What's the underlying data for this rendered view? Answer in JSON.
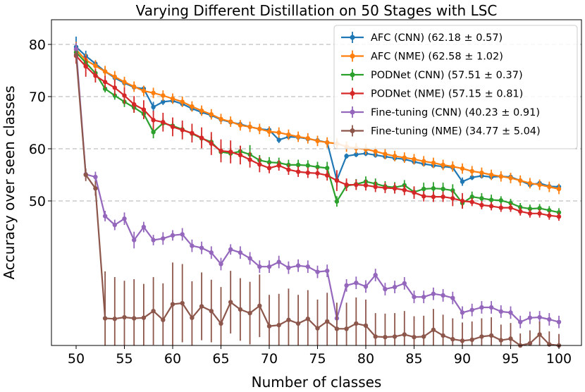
{
  "chart_data": {
    "type": "line",
    "title": "Varying Different Distillation on 50 Stages with LSC",
    "xlabel": "Number of classes",
    "ylabel": "Accuracy over seen classes",
    "xlim": [
      50,
      100
    ],
    "ylim": [
      27,
      83
    ],
    "xticks": [
      "50",
      "55",
      "60",
      "65",
      "70",
      "75",
      "80",
      "85",
      "90",
      "95",
      "100"
    ],
    "yticks": [
      "50",
      "60",
      "70",
      "80"
    ],
    "grid": "horizontal dashed at y ticks",
    "legend_position": "top-right",
    "x": [
      50,
      51,
      52,
      53,
      54,
      55,
      56,
      57,
      58,
      59,
      60,
      61,
      62,
      63,
      64,
      65,
      66,
      67,
      68,
      69,
      70,
      71,
      72,
      73,
      74,
      75,
      76,
      77,
      78,
      79,
      80,
      81,
      82,
      83,
      84,
      85,
      86,
      87,
      88,
      89,
      90,
      91,
      92,
      93,
      94,
      95,
      96,
      97,
      98,
      99,
      100
    ],
    "series": [
      {
        "name": "AFC (CNN) (62.18 ± 0.57)",
        "color": "#1f77b4",
        "values": [
          79.5,
          77.8,
          76.3,
          74.8,
          73.6,
          72.6,
          71.8,
          71.5,
          68.0,
          69.0,
          69.2,
          68.6,
          67.7,
          67.0,
          66.4,
          65.6,
          65.1,
          64.7,
          64.2,
          63.8,
          63.6,
          61.7,
          62.3,
          62.2,
          61.9,
          61.6,
          61.2,
          54.0,
          58.6,
          58.9,
          59.1,
          58.8,
          58.5,
          58.2,
          58.0,
          57.5,
          57.1,
          56.8,
          56.6,
          56.4,
          53.7,
          54.5,
          54.8,
          54.6,
          54.7,
          54.6,
          53.9,
          53.1,
          53.4,
          52.8,
          52.7
        ],
        "errors": [
          2.0,
          1.0,
          0.6,
          0.6,
          0.6,
          0.6,
          0.5,
          0.5,
          1.0,
          0.6,
          0.5,
          0.5,
          0.5,
          0.5,
          0.5,
          0.5,
          0.5,
          0.5,
          0.5,
          0.5,
          0.5,
          0.6,
          0.5,
          0.5,
          0.5,
          0.5,
          0.5,
          1.2,
          0.5,
          0.5,
          0.5,
          0.5,
          0.5,
          0.5,
          0.5,
          0.5,
          0.5,
          0.5,
          0.5,
          0.5,
          0.8,
          0.5,
          0.5,
          0.5,
          0.5,
          0.5,
          0.5,
          0.5,
          0.5,
          0.5,
          0.5
        ]
      },
      {
        "name": "AFC (NME) (62.58 ± 1.02)",
        "color": "#ff7f0e",
        "values": [
          79.0,
          77.0,
          75.9,
          74.8,
          73.8,
          72.8,
          71.9,
          71.1,
          70.7,
          70.2,
          69.6,
          69.0,
          68.1,
          67.3,
          66.6,
          65.7,
          65.2,
          64.5,
          64.2,
          63.8,
          63.3,
          63.1,
          62.7,
          62.3,
          62.0,
          61.5,
          61.2,
          61.0,
          60.4,
          60.1,
          59.9,
          59.5,
          59.0,
          58.6,
          58.3,
          58.0,
          57.6,
          57.3,
          56.9,
          56.6,
          56.2,
          55.7,
          55.4,
          55.0,
          54.7,
          54.4,
          53.9,
          53.4,
          53.1,
          52.7,
          52.3
        ],
        "errors": [
          1.5,
          1.2,
          1.1,
          1.1,
          1.1,
          1.0,
          1.0,
          1.0,
          1.0,
          1.0,
          1.0,
          1.0,
          1.0,
          1.0,
          1.0,
          1.0,
          1.0,
          1.0,
          1.0,
          1.0,
          1.0,
          1.0,
          1.0,
          1.0,
          1.0,
          1.0,
          1.0,
          1.0,
          1.0,
          1.0,
          1.0,
          1.0,
          1.0,
          1.0,
          1.0,
          1.0,
          1.0,
          1.0,
          1.0,
          1.0,
          1.0,
          1.0,
          1.0,
          1.0,
          1.0,
          1.0,
          1.0,
          1.0,
          1.0,
          1.0,
          1.0
        ]
      },
      {
        "name": "PODNet (CNN) (57.51 ± 0.37)",
        "color": "#2ca02c",
        "values": [
          78.5,
          76.5,
          74.5,
          71.5,
          70.2,
          69.0,
          67.9,
          66.7,
          63.2,
          64.9,
          64.4,
          63.7,
          62.9,
          62.0,
          61.3,
          59.4,
          59.1,
          59.5,
          58.9,
          57.8,
          57.4,
          57.3,
          56.9,
          56.9,
          56.8,
          56.5,
          56.3,
          49.9,
          52.9,
          53.2,
          53.7,
          53.3,
          52.8,
          52.6,
          53.0,
          51.7,
          52.3,
          52.4,
          52.3,
          52.0,
          49.6,
          50.8,
          50.5,
          50.2,
          50.1,
          49.6,
          48.8,
          48.5,
          48.6,
          48.2,
          47.8
        ],
        "errors": [
          0.9,
          0.6,
          0.6,
          0.7,
          0.8,
          1.0,
          1.0,
          1.0,
          1.2,
          1.0,
          0.9,
          0.9,
          0.9,
          0.9,
          1.0,
          1.2,
          1.0,
          1.0,
          1.8,
          1.0,
          1.0,
          1.0,
          1.0,
          1.0,
          1.0,
          1.0,
          1.2,
          1.0,
          1.0,
          1.0,
          1.0,
          1.0,
          1.0,
          1.0,
          1.0,
          1.0,
          1.2,
          1.2,
          1.2,
          1.2,
          1.0,
          1.0,
          1.0,
          1.0,
          0.8,
          0.8,
          0.8,
          0.8,
          0.8,
          0.8,
          0.8
        ]
      },
      {
        "name": "PODNet (NME) (57.15 ± 0.81)",
        "color": "#d62728",
        "values": [
          77.8,
          75.8,
          74.0,
          72.8,
          71.7,
          70.2,
          68.5,
          67.5,
          65.5,
          65.1,
          64.2,
          63.6,
          63.0,
          62.1,
          61.0,
          59.6,
          59.4,
          58.8,
          57.9,
          57.0,
          56.3,
          56.8,
          56.0,
          55.6,
          55.4,
          55.3,
          54.9,
          53.9,
          53.1,
          53.1,
          53.0,
          52.7,
          52.5,
          52.4,
          52.1,
          51.6,
          50.9,
          50.8,
          50.8,
          50.5,
          50.0,
          49.8,
          49.2,
          49.0,
          48.7,
          48.7,
          48.0,
          47.6,
          47.6,
          47.2,
          47.0
        ],
        "errors": [
          1.5,
          2.0,
          1.3,
          1.2,
          1.5,
          1.6,
          1.6,
          1.8,
          1.8,
          1.8,
          1.8,
          1.8,
          1.8,
          2.0,
          2.2,
          2.2,
          2.2,
          1.8,
          1.5,
          1.5,
          1.0,
          1.0,
          1.0,
          1.0,
          1.0,
          1.0,
          1.0,
          2.0,
          1.2,
          1.0,
          1.0,
          1.0,
          1.0,
          1.0,
          1.0,
          1.2,
          1.0,
          1.0,
          1.0,
          1.5,
          1.5,
          0.8,
          0.8,
          0.8,
          0.8,
          0.8,
          0.8,
          0.8,
          0.8,
          0.8,
          0.8
        ]
      },
      {
        "name": "Fine-tuning (CNN) (40.23 ± 0.91)",
        "color": "#9467bd",
        "values": [
          79.1,
          55.1,
          54.6,
          47.1,
          45.4,
          46.6,
          42.5,
          45.0,
          42.5,
          42.8,
          43.4,
          43.6,
          41.4,
          41.0,
          40.1,
          37.9,
          40.7,
          40.1,
          39.0,
          37.4,
          37.4,
          38.3,
          37.2,
          37.6,
          37.4,
          36.4,
          36.6,
          27.5,
          33.8,
          34.3,
          33.6,
          35.8,
          33.1,
          33.5,
          34.2,
          31.6,
          31.6,
          32.2,
          31.9,
          31.4,
          28.6,
          29.1,
          29.6,
          29.6,
          28.8,
          28.6,
          26.8,
          27.6,
          27.7,
          27.3,
          26.8
        ],
        "errors": [
          1.2,
          1.0,
          1.0,
          1.0,
          1.0,
          1.2,
          1.6,
          1.0,
          1.0,
          1.2,
          1.0,
          1.2,
          1.2,
          1.2,
          1.2,
          1.2,
          1.0,
          1.2,
          1.2,
          1.2,
          1.2,
          1.2,
          1.2,
          1.2,
          1.2,
          1.2,
          1.2,
          1.2,
          1.2,
          1.2,
          1.2,
          1.2,
          1.2,
          1.2,
          1.2,
          1.2,
          1.2,
          1.2,
          1.2,
          1.2,
          1.2,
          1.2,
          1.2,
          1.2,
          1.2,
          1.2,
          1.2,
          1.2,
          1.2,
          1.2,
          1.2
        ]
      },
      {
        "name": "Fine-tuning (NME) (34.77 ± 5.04)",
        "color": "#8c564b",
        "values": [
          78.0,
          55.0,
          52.4,
          27.5,
          27.4,
          27.7,
          27.5,
          27.6,
          28.9,
          27.2,
          30.2,
          30.4,
          27.6,
          29.8,
          28.9,
          26.5,
          30.6,
          29.2,
          28.5,
          29.9,
          26.0,
          26.2,
          27.2,
          26.5,
          27.4,
          25.6,
          26.9,
          25.5,
          25.5,
          26.5,
          26.1,
          24.0,
          23.9,
          24.0,
          24.4,
          23.9,
          24.0,
          25.3,
          24.2,
          23.5,
          23.2,
          23.4,
          24.0,
          24.2,
          23.3,
          23.6,
          21.6,
          22.7,
          24.4,
          22.5,
          22.0
        ],
        "errors": [
          0.8,
          1.2,
          1.4,
          9.0,
          8.0,
          7.0,
          7.5,
          6.5,
          6.5,
          7.0,
          8.0,
          7.5,
          7.0,
          6.5,
          6.0,
          7.0,
          6.0,
          6.0,
          6.0,
          6.0,
          6.0,
          6.0,
          6.0,
          5.5,
          5.5,
          5.5,
          5.5,
          5.0,
          5.0,
          5.0,
          5.0,
          4.5,
          4.5,
          4.5,
          4.5,
          4.0,
          4.0,
          4.0,
          4.0,
          4.0,
          3.5,
          3.5,
          3.5,
          3.5,
          3.0,
          3.0,
          3.0,
          2.5,
          2.5,
          2.5,
          2.5
        ]
      }
    ]
  }
}
